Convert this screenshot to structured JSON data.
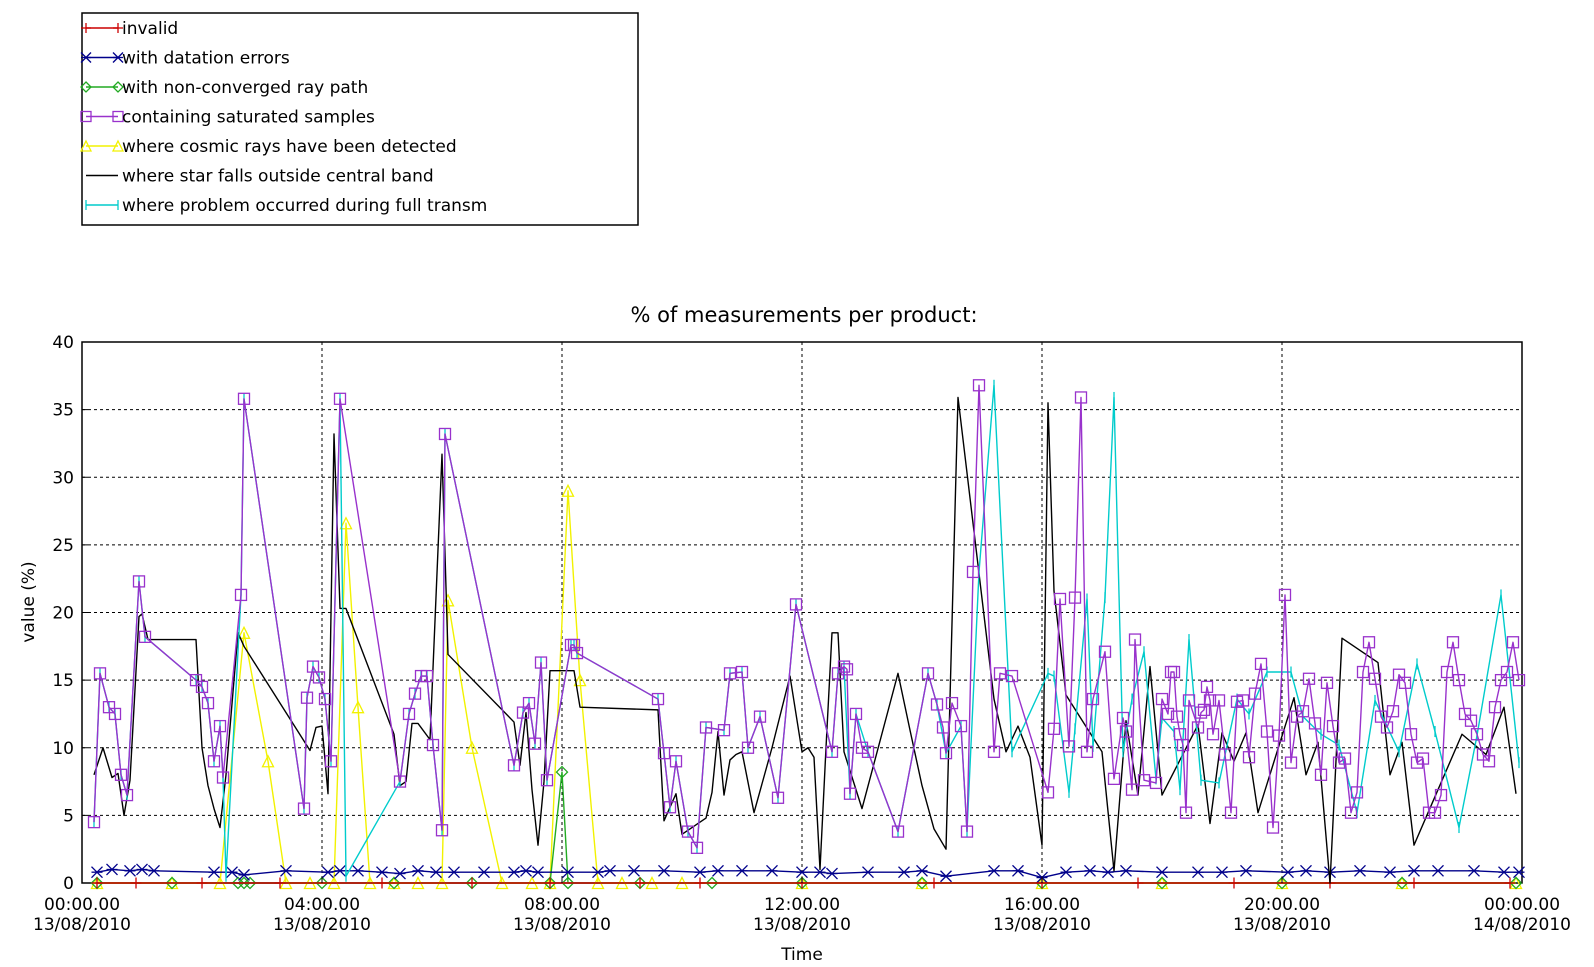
{
  "chart_data": {
    "type": "line",
    "title": "% of measurements per product:",
    "xlabel": "Time",
    "ylabel": "value (%)",
    "ylim": [
      0,
      40
    ],
    "xlim": [
      "2010-08-13 00:00",
      "2010-08-14 00:00"
    ],
    "grid": true,
    "legend_position": "top-left",
    "y_ticks": [
      "0",
      "5",
      "10",
      "15",
      "20",
      "25",
      "30",
      "35",
      "40"
    ],
    "x_ticks": [
      {
        "time": "00:00.00",
        "date": "13/08/2010",
        "hour": 0
      },
      {
        "time": "04:00.00",
        "date": "13/08/2010",
        "hour": 4
      },
      {
        "time": "08:00.00",
        "date": "13/08/2010",
        "hour": 8
      },
      {
        "time": "12:00.00",
        "date": "13/08/2010",
        "hour": 12
      },
      {
        "time": "16:00.00",
        "date": "13/08/2010",
        "hour": 16
      },
      {
        "time": "20:00.00",
        "date": "13/08/2010",
        "hour": 20
      },
      {
        "time": "00:00.00",
        "date": "14/08/2010",
        "hour": 24
      }
    ],
    "series": [
      {
        "name": "invalid",
        "color": "#cc0000",
        "marker": "plus",
        "x": [
          0.25,
          0.9,
          2.0,
          3.3,
          5.0,
          6.5,
          7.8,
          9.3,
          10.3,
          12.0,
          14.2,
          16.0,
          17.6,
          19.2,
          20.8,
          22.2,
          23.8
        ],
        "values": [
          0,
          0,
          0,
          0,
          0,
          0,
          0,
          0,
          0,
          0,
          0,
          0,
          0,
          0,
          0,
          0,
          0
        ]
      },
      {
        "name": "with datation errors",
        "color": "#00008b",
        "marker": "x",
        "x": [
          0.25,
          0.5,
          0.8,
          1.0,
          1.2,
          2.2,
          2.5,
          2.7,
          3.4,
          4.1,
          4.3,
          4.6,
          5.0,
          5.3,
          5.6,
          5.9,
          6.2,
          6.7,
          7.2,
          7.4,
          7.6,
          8.1,
          8.6,
          8.8,
          9.2,
          9.7,
          10.3,
          10.6,
          11.0,
          11.5,
          12.0,
          12.3,
          12.5,
          13.1,
          13.7,
          14.0,
          14.4,
          15.2,
          15.6,
          16.0,
          16.4,
          16.8,
          17.1,
          17.4,
          18.0,
          18.6,
          19.0,
          19.4,
          20.1,
          20.4,
          20.8,
          21.3,
          21.8,
          22.2,
          22.6,
          23.2,
          23.7,
          23.95
        ],
        "values": [
          0.8,
          1.0,
          0.9,
          1.0,
          0.9,
          0.8,
          0.8,
          0.6,
          0.9,
          0.8,
          0.9,
          0.9,
          0.8,
          0.7,
          0.9,
          0.8,
          0.8,
          0.8,
          0.8,
          0.9,
          0.8,
          0.8,
          0.8,
          0.9,
          0.9,
          0.9,
          0.8,
          0.9,
          0.9,
          0.9,
          0.8,
          0.8,
          0.7,
          0.8,
          0.8,
          0.9,
          0.5,
          0.9,
          0.9,
          0.4,
          0.8,
          0.9,
          0.8,
          0.9,
          0.8,
          0.8,
          0.8,
          0.9,
          0.8,
          0.9,
          0.8,
          0.9,
          0.8,
          0.9,
          0.9,
          0.9,
          0.8,
          0.8
        ]
      },
      {
        "name": "with non-converged ray path",
        "color": "#22aa22",
        "marker": "diamond",
        "x": [
          0.25,
          1.5,
          2.6,
          2.7,
          2.8,
          4.0,
          5.2,
          6.5,
          7.8,
          8.0,
          8.1,
          9.3,
          10.5,
          12.0,
          14.0,
          16.0,
          18.0,
          20.0,
          22.0,
          23.9
        ],
        "values": [
          0,
          0,
          0,
          0,
          0,
          0,
          0,
          0,
          0,
          8.2,
          0,
          0,
          0,
          0,
          0,
          0,
          0,
          0,
          0,
          0
        ]
      },
      {
        "name": "containing saturated samples",
        "color": "#9932cc",
        "marker": "square",
        "x": [
          0.2,
          0.3,
          0.45,
          0.55,
          0.65,
          0.75,
          0.95,
          1.05,
          1.9,
          2.0,
          2.1,
          2.2,
          2.3,
          2.35,
          2.65,
          2.7,
          3.7,
          3.75,
          3.85,
          3.95,
          4.05,
          4.15,
          4.3,
          5.3,
          5.45,
          5.55,
          5.65,
          5.75,
          5.85,
          6.0,
          6.05,
          7.2,
          7.35,
          7.45,
          7.55,
          7.65,
          7.75,
          8.15,
          8.2,
          8.25,
          9.6,
          9.7,
          9.8,
          9.9,
          10.1,
          10.25,
          10.4,
          10.7,
          10.8,
          11.0,
          11.1,
          11.3,
          11.6,
          11.9,
          12.5,
          12.6,
          12.7,
          12.75,
          12.8,
          12.9,
          13.0,
          13.1,
          13.6,
          14.1,
          14.25,
          14.35,
          14.4,
          14.5,
          14.65,
          14.75,
          14.85,
          14.95,
          15.2,
          15.3,
          15.5,
          16.1,
          16.2,
          16.3,
          16.45,
          16.55,
          16.65,
          16.75,
          16.85,
          17.05,
          17.2,
          17.35,
          17.4,
          17.5,
          17.55,
          17.7,
          17.9,
          18.0,
          18.1,
          18.15,
          18.2,
          18.25,
          18.3,
          18.35,
          18.4,
          18.45,
          18.6,
          18.65,
          18.7,
          18.75,
          18.8,
          18.85,
          18.95,
          19.05,
          19.15,
          19.25,
          19.35,
          19.45,
          19.55,
          19.65,
          19.75,
          19.85,
          19.95,
          20.05,
          20.15,
          20.25,
          20.35,
          20.45,
          20.55,
          20.65,
          20.75,
          20.85,
          20.95,
          21.05,
          21.15,
          21.25,
          21.35,
          21.45,
          21.55,
          21.65,
          21.75,
          21.85,
          21.95,
          22.05,
          22.15,
          22.25,
          22.35,
          22.45,
          22.55,
          22.65,
          22.75,
          22.85,
          22.95,
          23.05,
          23.15,
          23.25,
          23.35,
          23.45,
          23.55,
          23.65,
          23.75,
          23.85,
          23.95
        ],
        "values": [
          4.5,
          15.5,
          13,
          12.5,
          8,
          6.5,
          22.3,
          18.2,
          15,
          14.5,
          13.3,
          9,
          11.6,
          7.8,
          21.3,
          35.8,
          5.5,
          13.7,
          16,
          15.2,
          13.6,
          9,
          35.8,
          7.5,
          12.5,
          14,
          15.3,
          15.3,
          10.2,
          3.9,
          33.2,
          8.7,
          12.6,
          13.3,
          10.3,
          16.3,
          7.6,
          17.6,
          17.6,
          17,
          13.6,
          9.6,
          5.6,
          9,
          3.8,
          2.6,
          11.5,
          11.3,
          15.5,
          15.6,
          10,
          12.3,
          6.3,
          20.6,
          9.7,
          15.5,
          16,
          15.8,
          6.6,
          12.5,
          10,
          9.7,
          3.8,
          15.5,
          13.2,
          11.5,
          9.6,
          13.3,
          11.6,
          3.8,
          23,
          36.8,
          9.7,
          15.5,
          15.3,
          6.7,
          11.4,
          21,
          10.1,
          21.1,
          35.9,
          9.7,
          13.6,
          17.1,
          7.7,
          12.2,
          11.2,
          6.9,
          18,
          7.6,
          7.4,
          13.6,
          12.5,
          15.6,
          15.6,
          12.3,
          11,
          10.2,
          5.2,
          13.5,
          11.5,
          12.6,
          12.8,
          14.5,
          13.5,
          11.0,
          13.5,
          9.5,
          5.2,
          13.4,
          13.5,
          9.3,
          14,
          16.2,
          11.2,
          4.1,
          10.9,
          21.3,
          8.9,
          12.3,
          12.7,
          15.1,
          11.8,
          8.0,
          14.8,
          11.6,
          8.9,
          9.2,
          5.2,
          6.7,
          15.6,
          17.8,
          15.1,
          12.3,
          11.5,
          12.7,
          15.4,
          14.8,
          11.0,
          8.9,
          9.2,
          5.2,
          5.2,
          6.5,
          15.6,
          17.8,
          15.0,
          12.5,
          12.0,
          11.0,
          9.5,
          9.0,
          13.0,
          15.0,
          15.6,
          17.8,
          15.0
        ]
      },
      {
        "name": "where cosmic rays have been detected",
        "color": "#f2f200",
        "marker": "triangle",
        "x": [
          0.25,
          1.5,
          2.3,
          2.7,
          3.1,
          3.4,
          3.8,
          4.2,
          4.4,
          4.6,
          4.8,
          5.2,
          5.6,
          6.0,
          6.1,
          6.5,
          7.0,
          7.5,
          7.8,
          8.1,
          8.3,
          8.6,
          9.0,
          9.5,
          10.0,
          12.0,
          14.0,
          16.0,
          18.0,
          20.0,
          22.0,
          23.9
        ],
        "values": [
          0,
          0,
          0,
          18.5,
          9,
          0,
          0,
          0,
          26.6,
          13,
          0,
          0,
          0,
          0,
          20.9,
          10,
          0,
          0,
          0,
          29,
          15,
          0,
          0,
          0,
          0,
          0,
          0,
          0,
          0,
          0,
          0,
          0
        ]
      },
      {
        "name": "where star falls outside central band",
        "color": "#000000",
        "marker": "none",
        "x": [
          0.2,
          0.35,
          0.5,
          0.6,
          0.7,
          0.8,
          0.95,
          1.0,
          1.1,
          1.9,
          2.0,
          2.1,
          2.2,
          2.3,
          2.4,
          2.6,
          2.7,
          3.7,
          3.8,
          3.9,
          4.0,
          4.1,
          4.2,
          4.3,
          4.4,
          5.2,
          5.3,
          5.4,
          5.5,
          5.6,
          5.8,
          6.0,
          6.1,
          7.2,
          7.3,
          7.4,
          7.5,
          7.6,
          7.7,
          7.8,
          8.2,
          8.3,
          9.6,
          9.7,
          9.8,
          9.9,
          10.0,
          10.2,
          10.4,
          10.5,
          10.6,
          10.7,
          10.8,
          10.9,
          11.0,
          11.2,
          11.5,
          11.8,
          12.0,
          12.1,
          12.2,
          12.3,
          12.4,
          12.5,
          12.6,
          12.7,
          13.0,
          13.6,
          13.8,
          14.0,
          14.2,
          14.4,
          14.6,
          15.2,
          15.4,
          15.6,
          15.8,
          16.0,
          16.1,
          16.2,
          16.4,
          17.0,
          17.2,
          17.4,
          17.6,
          17.8,
          18.0,
          18.6,
          18.8,
          19.0,
          19.2,
          19.4,
          19.6,
          20.2,
          20.4,
          20.6,
          20.8,
          21.0,
          21.6,
          21.8,
          22.0,
          22.2,
          22.6,
          23.0,
          23.4,
          23.7,
          23.9
        ],
        "values": [
          8,
          10,
          7.8,
          8.1,
          5.0,
          7.6,
          19.7,
          19.9,
          18,
          18,
          10,
          7.2,
          5.5,
          4.1,
          8.0,
          18.5,
          17.5,
          10.5,
          9.8,
          11.5,
          11.6,
          6.6,
          33.2,
          20.3,
          20.3,
          11.0,
          7.2,
          7.5,
          11.8,
          11.8,
          10.6,
          31.7,
          16.9,
          11.9,
          8.7,
          12.6,
          6.9,
          2.8,
          7.5,
          15.7,
          15.7,
          13.0,
          12.8,
          4.6,
          5.6,
          6.6,
          3.6,
          4.2,
          4.8,
          6.7,
          11.2,
          6.5,
          9.1,
          9.5,
          9.7,
          5.2,
          10.0,
          15.3,
          9.7,
          10.0,
          9.3,
          1.0,
          10.0,
          18.5,
          18.5,
          9.7,
          5.5,
          15.5,
          11.3,
          7.2,
          4.0,
          2.5,
          35.9,
          13.6,
          9.7,
          11.6,
          9.3,
          2.8,
          35.5,
          21.6,
          13.9,
          9.7,
          0.9,
          12.0,
          6.5,
          16.0,
          6.5,
          11.7,
          4.4,
          11.1,
          9.0,
          11.1,
          5.2,
          13.7,
          8.0,
          10.4,
          0.0,
          18.1,
          16.3,
          8.0,
          10.4,
          2.8,
          6.9,
          11.0,
          9.5,
          13.0,
          6.6
        ]
      },
      {
        "name": "where problem occurred during full transm",
        "color": "#00cccc",
        "marker": "vbar",
        "x": [
          0.2,
          0.3,
          0.45,
          0.55,
          0.65,
          0.75,
          0.95,
          1.05,
          1.9,
          2.0,
          2.1,
          2.2,
          2.3,
          2.35,
          2.4,
          2.65,
          2.7,
          3.7,
          3.75,
          3.85,
          3.95,
          4.05,
          4.15,
          4.3,
          4.4,
          5.3,
          5.45,
          5.55,
          5.65,
          5.75,
          5.85,
          6.0,
          6.05,
          7.2,
          7.35,
          7.45,
          7.55,
          7.65,
          7.75,
          8.15,
          8.2,
          8.25,
          9.6,
          9.7,
          9.8,
          9.9,
          10.1,
          10.25,
          10.4,
          10.7,
          10.8,
          11.0,
          11.1,
          11.3,
          11.6,
          11.9,
          12.5,
          12.6,
          12.7,
          12.8,
          12.9,
          13.1,
          13.6,
          14.1,
          14.25,
          14.4,
          14.65,
          14.75,
          14.95,
          15.2,
          15.5,
          16.1,
          16.2,
          16.45,
          16.55,
          16.75,
          16.85,
          17.05,
          17.2,
          17.35,
          17.5,
          17.7,
          17.9,
          18.0,
          18.2,
          18.3,
          18.45,
          18.65,
          18.95,
          19.25,
          19.45,
          19.75,
          20.15,
          20.35,
          20.65,
          20.95,
          21.25,
          21.55,
          21.95,
          22.25,
          22.55,
          22.95,
          23.25,
          23.65,
          23.95
        ],
        "values": [
          4.5,
          15.5,
          13,
          12.5,
          8,
          6.5,
          22.3,
          18.2,
          15,
          14.5,
          13.3,
          9,
          11.6,
          7.8,
          0.5,
          21.3,
          35.8,
          5.5,
          13.7,
          16,
          15.2,
          13.6,
          9,
          35.8,
          0.5,
          7.5,
          12.5,
          14,
          15.3,
          15.3,
          10.2,
          3.9,
          33.2,
          8.7,
          12.6,
          13.3,
          10.3,
          16.3,
          7.6,
          17.6,
          17.6,
          17,
          13.6,
          9.6,
          5.6,
          9,
          3.8,
          2.6,
          11.5,
          11.3,
          15.5,
          15.6,
          10,
          12.3,
          6.3,
          20.6,
          9.7,
          15.5,
          16,
          6.6,
          12.5,
          9.7,
          3.8,
          15.5,
          13.2,
          9.6,
          11.6,
          3.8,
          23,
          36.8,
          9.7,
          15.5,
          15.3,
          6.7,
          11.4,
          21,
          10.1,
          21.1,
          35.9,
          9.7,
          13.6,
          17.1,
          7.7,
          12.2,
          11.2,
          6.9,
          18,
          7.6,
          7.4,
          13.6,
          12.5,
          15.6,
          15.6,
          12.3,
          11.0,
          10.2,
          5.2,
          13.5,
          9.7,
          16.2,
          11.2,
          4.1,
          10.9,
          21.3,
          8.9
        ]
      }
    ]
  }
}
